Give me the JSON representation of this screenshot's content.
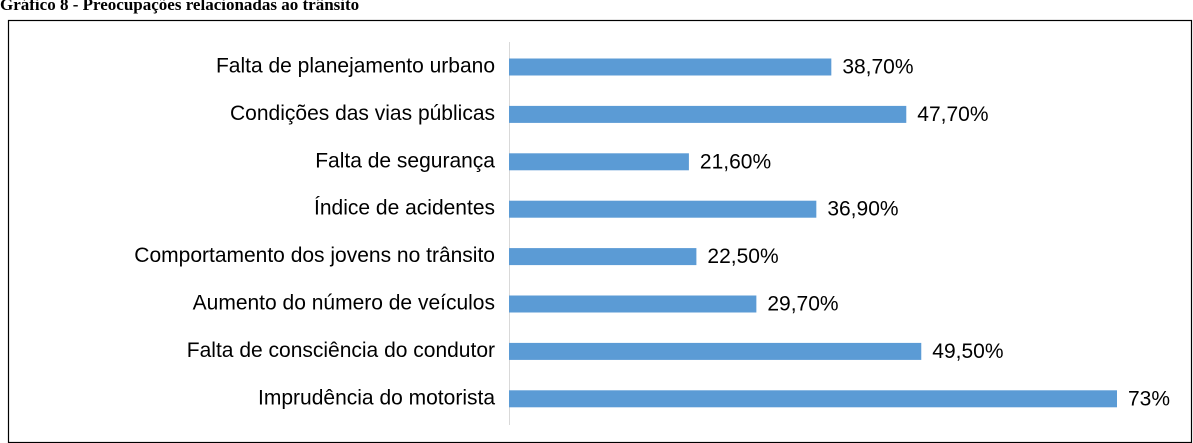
{
  "chart_data": {
    "type": "hbar",
    "title": "Gráfico 8 - Preocupações relacionadas ao trânsito",
    "categories": [
      "Falta de planejamento urbano",
      "Condições das vias públicas",
      "Falta de segurança",
      "Índice de acidentes",
      "Comportamento dos jovens no trânsito",
      "Aumento do número de veículos",
      "Falta de consciência do condutor",
      "Imprudência do motorista"
    ],
    "values": [
      38.7,
      47.7,
      21.6,
      36.9,
      22.5,
      29.7,
      49.5,
      73
    ],
    "value_labels": [
      "38,70%",
      "47,70%",
      "21,60%",
      "36,90%",
      "22,50%",
      "29,70%",
      "49,50%",
      "73%"
    ],
    "color": "#5b9bd5"
  }
}
